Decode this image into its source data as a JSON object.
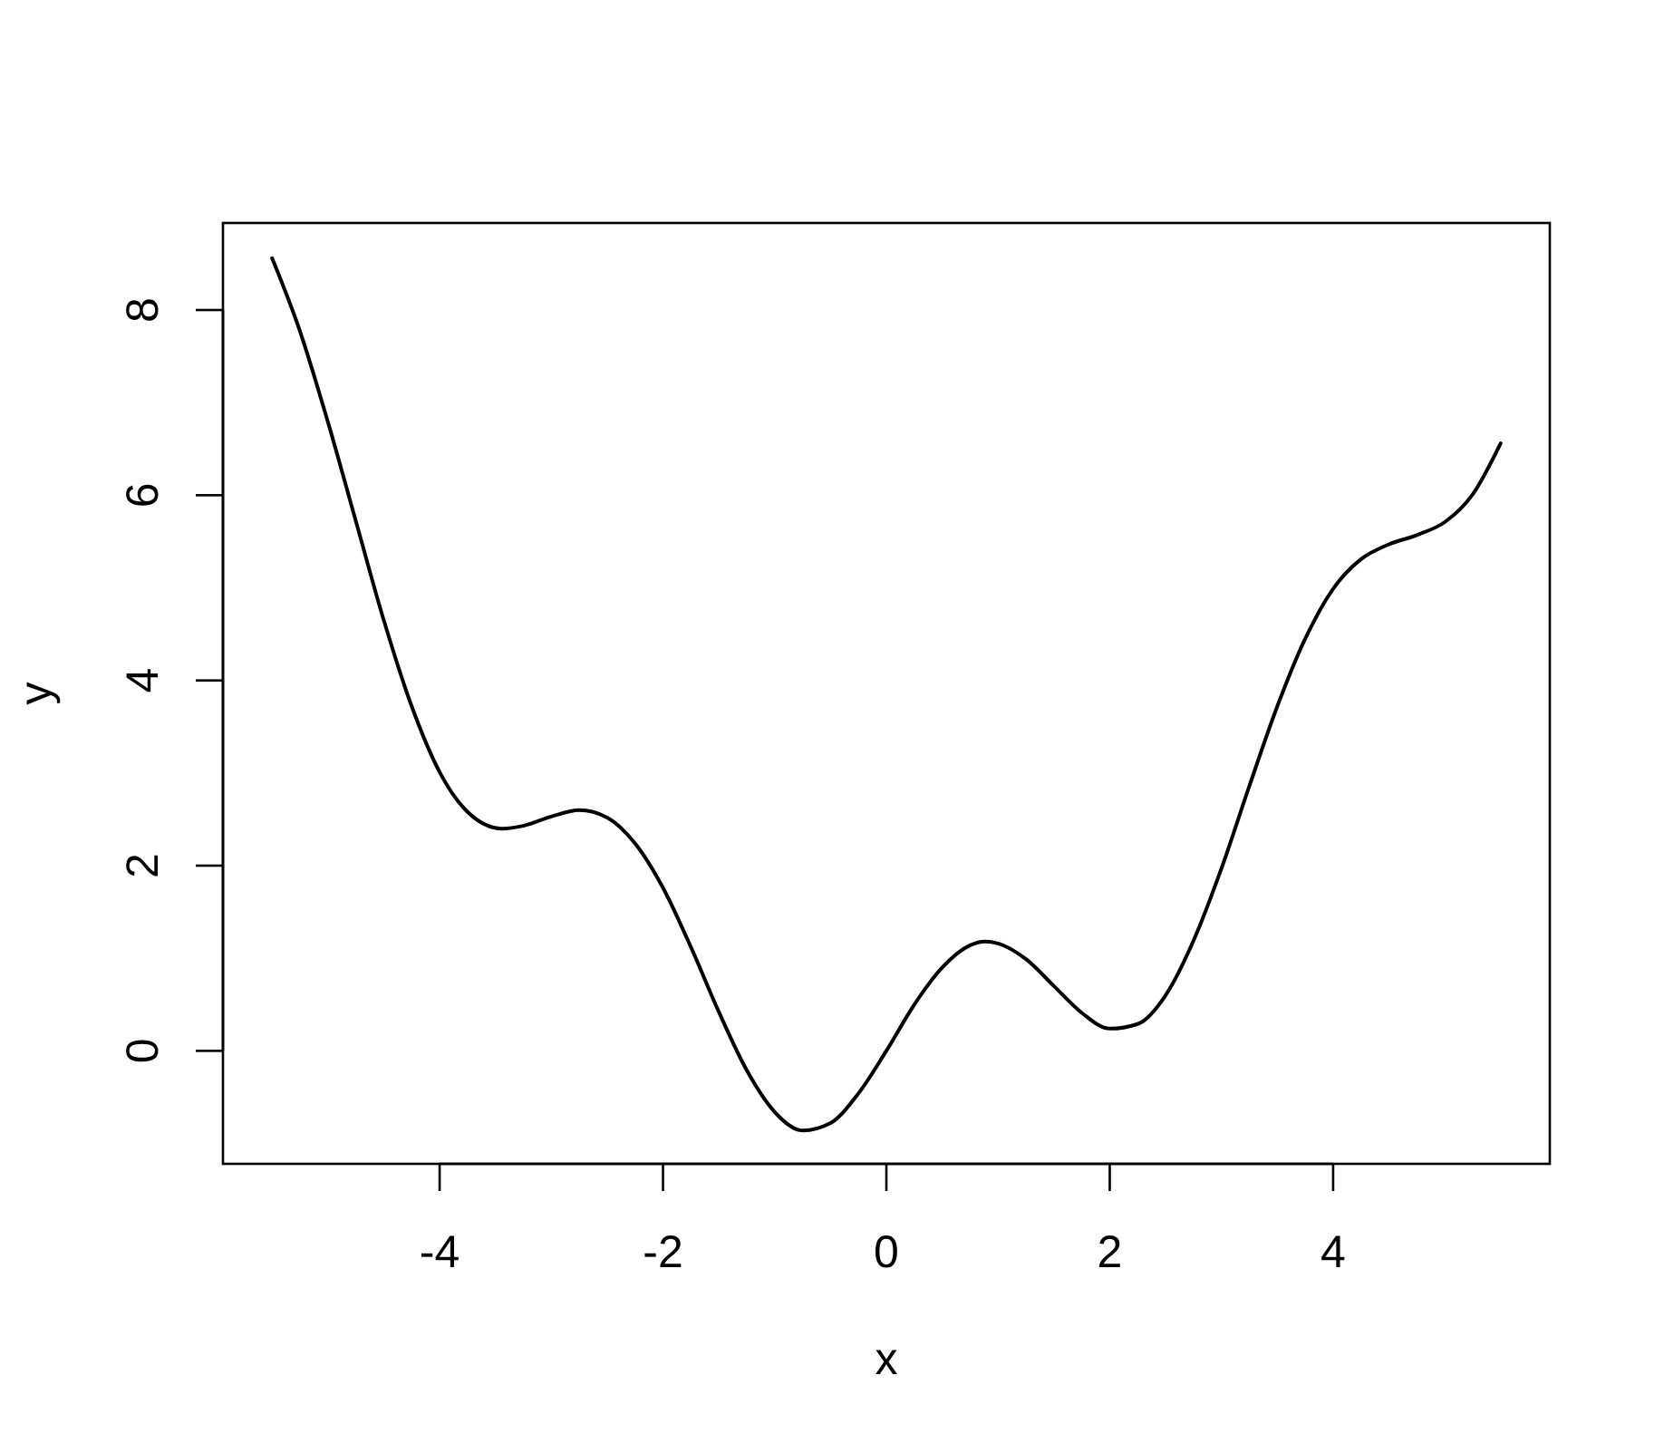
{
  "chart_data": {
    "type": "line",
    "xlabel": "x",
    "ylabel": "y",
    "x": [
      -5.5,
      -5.25,
      -5,
      -4.75,
      -4.5,
      -4.25,
      -4,
      -3.75,
      -3.44,
      -3.25,
      -3,
      -2.75,
      -2.5,
      -2.25,
      -2,
      -1.75,
      -1.5,
      -1.25,
      -1,
      -0.75,
      -0.5,
      -0.25,
      0,
      0.25,
      0.5,
      0.75,
      0.88,
      1,
      1.25,
      1.5,
      1.75,
      2,
      2.25,
      2.5,
      2.75,
      3,
      3.25,
      3.5,
      3.75,
      4,
      4.25,
      4.5,
      4.75,
      5,
      5.25,
      5.5
    ],
    "values": [
      8.56,
      7.77,
      6.79,
      5.72,
      4.65,
      3.72,
      3.01,
      2.58,
      2.4,
      2.43,
      2.53,
      2.6,
      2.52,
      2.24,
      1.76,
      1.12,
      0.42,
      -0.21,
      -0.66,
      -0.86,
      -0.78,
      -0.46,
      0,
      0.5,
      0.9,
      1.14,
      1.18,
      1.16,
      0.99,
      0.7,
      0.41,
      0.24,
      0.29,
      0.6,
      1.19,
      1.97,
      2.86,
      3.72,
      4.45,
      4.99,
      5.31,
      5.47,
      5.57,
      5.71,
      6.01,
      6.56
    ],
    "color": "#000000",
    "xlim": [
      -5.94,
      5.94
    ],
    "ylim": [
      -1.22,
      8.94
    ],
    "xticks": [
      -4,
      -2,
      0,
      2,
      4
    ],
    "yticks": [
      0,
      2,
      4,
      6,
      8
    ]
  }
}
